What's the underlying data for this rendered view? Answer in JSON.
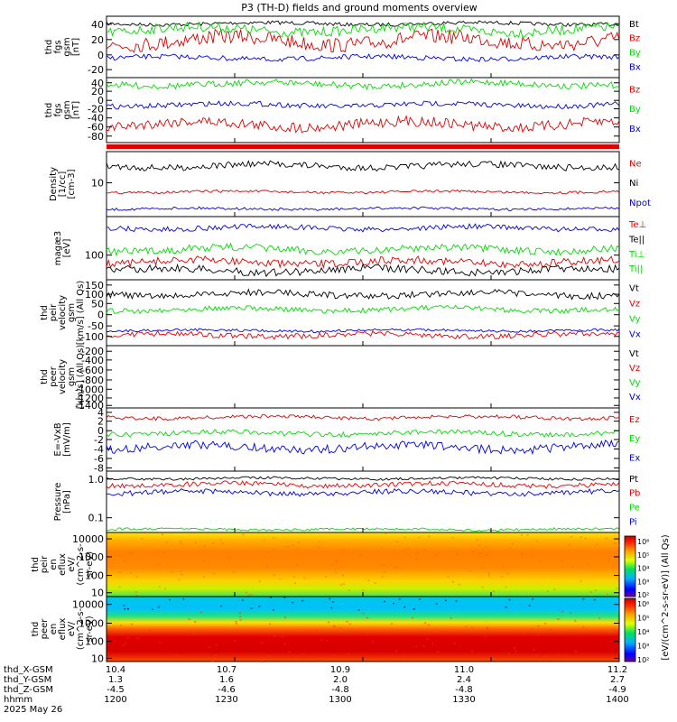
{
  "title": "P3 (TH-D) fields and ground moments overview",
  "colors": {
    "black": "#000000",
    "red": "#e00000",
    "green": "#00dd00",
    "blue": "#0000dd"
  },
  "panels": [
    {
      "id": "fgs-gsm",
      "ylabel": [
        "thd",
        "fgs",
        "gsm",
        "[nT]"
      ],
      "ticks": [
        "40",
        "20",
        "0",
        "-20"
      ],
      "legend": [
        {
          "text": "Bt",
          "color": "#000000"
        },
        {
          "text": "Bz",
          "color": "#e00000"
        },
        {
          "text": "By",
          "color": "#00dd00"
        },
        {
          "text": "Bx",
          "color": "#0000dd"
        }
      ]
    },
    {
      "id": "fgs-gsm-dsl",
      "ylabel": [
        "thd",
        "fgs",
        "gsm",
        "[nT]"
      ],
      "ticks": [
        "40",
        "20",
        "0",
        "-20",
        "-40",
        "-60",
        "-80"
      ],
      "legend": [
        {
          "text": "Bz",
          "color": "#e00000"
        },
        {
          "text": "By",
          "color": "#00dd00"
        },
        {
          "text": "Bx",
          "color": "#0000dd"
        }
      ]
    },
    {
      "id": "density",
      "ylabel": [
        "Density",
        "[1/cc]",
        "[cm-3]"
      ],
      "ticks": [
        "10"
      ],
      "legend": [
        {
          "text": "Ne",
          "color": "#e00000"
        },
        {
          "text": "Ni",
          "color": "#000000"
        },
        {
          "text": "Npot",
          "color": "#0000dd"
        }
      ]
    },
    {
      "id": "temperature",
      "ylabel": [
        "magæ3",
        "[eV]"
      ],
      "ticks": [
        "100"
      ],
      "legend": [
        {
          "text": "Te⊥",
          "color": "#e00000"
        },
        {
          "text": "Te||",
          "color": "#000000"
        },
        {
          "text": "Ti⊥",
          "color": "#00dd00"
        },
        {
          "text": "Ti||",
          "color": "#00dd00"
        }
      ]
    },
    {
      "id": "peir-velocity",
      "ylabel": [
        "thd",
        "peir",
        "velocity",
        "gsm",
        "[km/s] (All Qs)"
      ],
      "ticks": [
        "150",
        "100",
        "50",
        "0",
        "-50",
        "-100"
      ],
      "legend": [
        {
          "text": "Vt",
          "color": "#000000"
        },
        {
          "text": "Vz",
          "color": "#e00000"
        },
        {
          "text": "Vy",
          "color": "#00dd00"
        },
        {
          "text": "Vx",
          "color": "#0000dd"
        }
      ]
    },
    {
      "id": "peer-velocity",
      "ylabel": [
        "thd",
        "peer",
        "velocity",
        "gsm",
        "[km/s] (All Qs)"
      ],
      "ticks": [
        "-200",
        "-400",
        "-600",
        "-800",
        "-1000",
        "-1200",
        "-1400"
      ],
      "legend": [
        {
          "text": "Vt",
          "color": "#000000"
        },
        {
          "text": "Vz",
          "color": "#e00000"
        },
        {
          "text": "Vy",
          "color": "#00dd00"
        },
        {
          "text": "Vx",
          "color": "#0000dd"
        }
      ]
    },
    {
      "id": "efield",
      "ylabel": [
        "E=-VxB",
        "[mV/m]"
      ],
      "ticks": [
        "4",
        "2",
        "0",
        "-2",
        "-4",
        "-6",
        "-8"
      ],
      "legend": [
        {
          "text": "Ez",
          "color": "#e00000"
        },
        {
          "text": "Ey",
          "color": "#00dd00"
        },
        {
          "text": "Ex",
          "color": "#0000dd"
        }
      ]
    },
    {
      "id": "pressure",
      "ylabel": [
        "Pressure",
        "[nPa]"
      ],
      "ticks": [
        "1.0",
        "0.1"
      ],
      "legend": [
        {
          "text": "Pt",
          "color": "#000000"
        },
        {
          "text": "Pb",
          "color": "#e00000"
        },
        {
          "text": "Pe",
          "color": "#00dd00"
        },
        {
          "text": "Pi",
          "color": "#0000dd"
        }
      ]
    },
    {
      "id": "peir-en-eflux",
      "ylabel": [
        "thd",
        "peir",
        "en",
        "eflux",
        "eV/",
        "(cm^2-s-",
        "sr-eV)"
      ],
      "ticks": [
        "10000",
        "1000",
        "100",
        "10"
      ]
    },
    {
      "id": "peer-en-eflux",
      "ylabel": [
        "thd",
        "peer",
        "en",
        "eflux",
        "eV/",
        "(cm^2-s-",
        "sr-eV)"
      ],
      "ticks": [
        "10000",
        "1000",
        "100",
        "10"
      ]
    }
  ],
  "colorbar": {
    "label": "[eV/(cm^2-s-sr-eV)] (All Qs)",
    "ticks_top": [
      "10⁶",
      "10⁵",
      "10⁴",
      "10³",
      "10²"
    ],
    "ticks_bottom": [
      "10⁶",
      "10⁵",
      "10⁴",
      "10³",
      "10²"
    ]
  },
  "x_axis": {
    "row_labels": [
      "thd_X-GSM",
      "thd_Y-GSM",
      "thd_Z-GSM",
      "hhmm",
      "2025 May 26"
    ],
    "columns": [
      {
        "x": "10.4",
        "y": "1.3",
        "z": "-4.5",
        "hhmm": "1200"
      },
      {
        "x": "10.7",
        "y": "1.6",
        "z": "-4.6",
        "hhmm": "1230"
      },
      {
        "x": "10.9",
        "y": "2.0",
        "z": "-4.8",
        "hhmm": "1300"
      },
      {
        "x": "11.0",
        "y": "2.4",
        "z": "-4.8",
        "hhmm": "1330"
      },
      {
        "x": "11.2",
        "y": "2.7",
        "z": "-4.9",
        "hhmm": "1400"
      }
    ]
  },
  "chart_data": {
    "type": "line",
    "title": "P3 (TH-D) fields and ground moments overview",
    "x_label": "hhmm",
    "x_ticks": [
      "1200",
      "1230",
      "1300",
      "1330",
      "1400"
    ],
    "panels": [
      {
        "name": "fgs-gsm",
        "ylim": [
          -20,
          50
        ],
        "series": [
          {
            "name": "Bt",
            "approx_level": 38
          },
          {
            "name": "Bz",
            "approx_level": 15
          },
          {
            "name": "By",
            "approx_level": 33
          },
          {
            "name": "Bx",
            "approx_level": 2
          }
        ]
      },
      {
        "name": "fgs-gsm-dsl",
        "ylim": [
          -90,
          50
        ],
        "series": [
          {
            "name": "Bz",
            "approx_level": -40
          },
          {
            "name": "By",
            "approx_level": 35
          },
          {
            "name": "Bx",
            "approx_level": -10
          }
        ]
      },
      {
        "name": "density",
        "scale": "log",
        "series": [
          {
            "name": "Ne",
            "approx_level": 5
          },
          {
            "name": "Ni",
            "approx_level": 15
          },
          {
            "name": "Npot",
            "approx_level": 3
          }
        ]
      },
      {
        "name": "temperature",
        "scale": "log",
        "series": [
          {
            "name": "Te⊥",
            "approx_level": 70
          },
          {
            "name": "Te||",
            "approx_level": 50
          },
          {
            "name": "Ti⊥",
            "approx_level": 200
          },
          {
            "name": "Ti||",
            "approx_level": 120
          }
        ]
      },
      {
        "name": "peir-velocity",
        "ylim": [
          -100,
          180
        ],
        "series": [
          {
            "name": "Vt",
            "approx_level": 110
          },
          {
            "name": "Vz",
            "approx_level": -60
          },
          {
            "name": "Vy",
            "approx_level": 50
          },
          {
            "name": "Vx",
            "approx_level": -50
          }
        ]
      },
      {
        "name": "peer-velocity",
        "ylim": [
          -1500,
          0
        ],
        "series": []
      },
      {
        "name": "efield",
        "ylim": [
          -9,
          4
        ],
        "series": [
          {
            "name": "Ez",
            "approx_level": 2.5
          },
          {
            "name": "Ey",
            "approx_level": 0
          },
          {
            "name": "Ex",
            "approx_level": -3
          }
        ]
      },
      {
        "name": "pressure",
        "scale": "log",
        "series": [
          {
            "name": "Pt",
            "approx_level": 0.9
          },
          {
            "name": "Pb",
            "approx_level": 0.65
          },
          {
            "name": "Pe",
            "approx_level": 0.04
          },
          {
            "name": "Pi",
            "approx_level": 0.55
          }
        ]
      },
      {
        "name": "peir-en-eflux",
        "type": "heatmap",
        "ylim": [
          10,
          10000
        ]
      },
      {
        "name": "peer-en-eflux",
        "type": "heatmap",
        "ylim": [
          10,
          10000
        ]
      }
    ]
  }
}
